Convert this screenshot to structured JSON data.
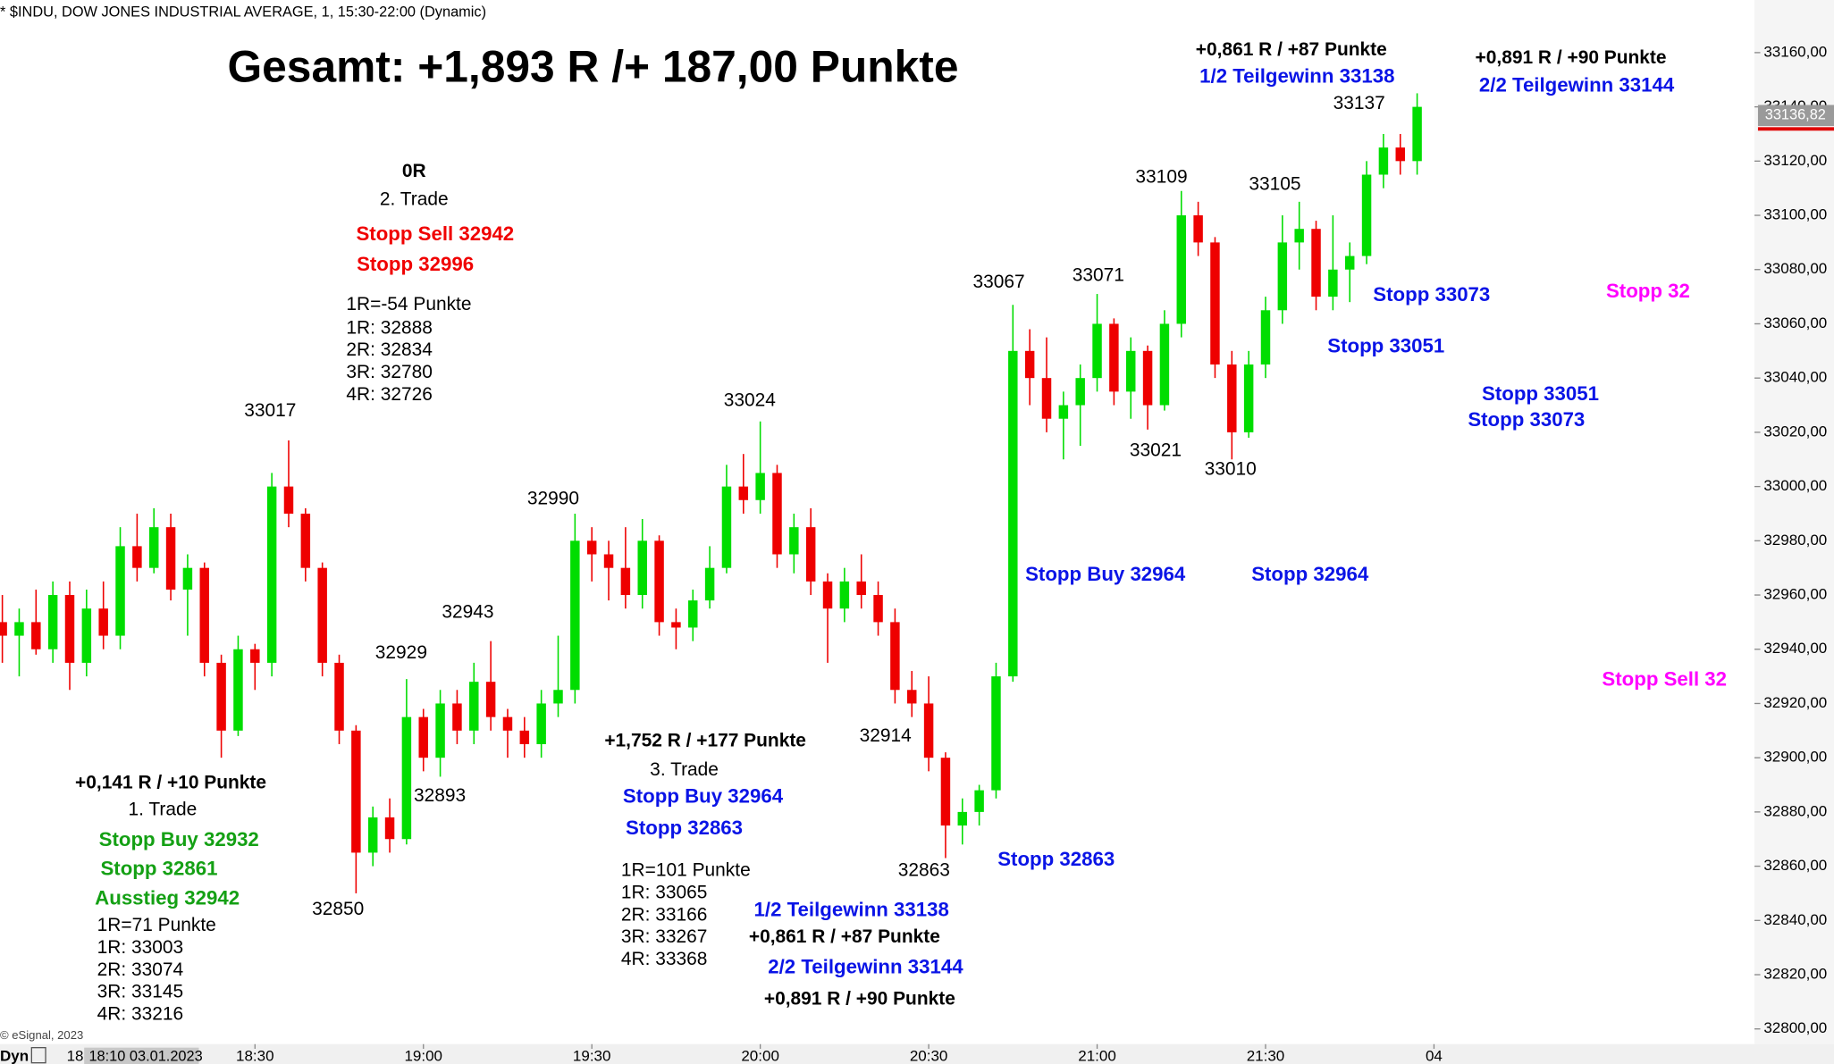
{
  "chart_data": {
    "type": "candlestick",
    "header": "* $INDU, DOW JONES INDUSTRIAL AVERAGE, 1, 15:30-22:00 (Dynamic)",
    "title": "Gesamt: +1,893 R /+ 187,00 Punkte",
    "x": [
      "17:45",
      "17:48",
      "17:51",
      "17:54",
      "17:57",
      "18:00",
      "18:03",
      "18:06",
      "18:09",
      "18:12",
      "18:15",
      "18:18",
      "18:21",
      "18:24",
      "18:27",
      "18:30",
      "18:33",
      "18:36",
      "18:39",
      "18:42",
      "18:45",
      "18:48",
      "18:51",
      "18:54",
      "18:57",
      "19:00",
      "19:03",
      "19:06",
      "19:09",
      "19:12",
      "19:15",
      "19:18",
      "19:21",
      "19:24",
      "19:27",
      "19:30",
      "19:33",
      "19:36",
      "19:39",
      "19:42",
      "19:45",
      "19:48",
      "19:51",
      "19:54",
      "19:57",
      "20:00",
      "20:03",
      "20:06",
      "20:09",
      "20:12",
      "20:15",
      "20:18",
      "20:21",
      "20:24",
      "20:27",
      "20:30",
      "20:33",
      "20:36",
      "20:39",
      "20:42",
      "20:45",
      "20:48",
      "20:51",
      "20:54",
      "20:57",
      "21:00",
      "21:03",
      "21:06",
      "21:09",
      "21:12",
      "21:15",
      "21:18",
      "21:21",
      "21:24",
      "21:27",
      "21:30",
      "21:33",
      "21:36",
      "21:39",
      "21:42",
      "21:45",
      "21:48",
      "21:51",
      "21:54",
      "21:57"
    ],
    "open": [
      32950,
      32945,
      32950,
      32940,
      32960,
      32935,
      32955,
      32945,
      32978,
      32970,
      32985,
      32962,
      32970,
      32935,
      32910,
      32940,
      32935,
      33000,
      32990,
      32970,
      32935,
      32910,
      32865,
      32878,
      32870,
      32915,
      32900,
      32920,
      32910,
      32928,
      32915,
      32910,
      32905,
      32920,
      32925,
      32980,
      32975,
      32970,
      32960,
      32980,
      32950,
      32948,
      32958,
      32970,
      33000,
      32995,
      33005,
      32975,
      32985,
      32965,
      32955,
      32965,
      32960,
      32950,
      32925,
      32920,
      32900,
      32875,
      32880,
      32888,
      32930,
      33050,
      33040,
      33025,
      33030,
      33040,
      33060,
      33035,
      33050,
      33030,
      33060,
      33100,
      33090,
      33045,
      33020,
      33045,
      33065,
      33090,
      33095,
      33070,
      33080,
      33085,
      33115,
      33125,
      33120
    ],
    "high": [
      32960,
      32955,
      32962,
      32965,
      32965,
      32962,
      32965,
      32985,
      32990,
      32992,
      32990,
      32975,
      32972,
      32938,
      32945,
      32942,
      33005,
      33017,
      32992,
      32972,
      32938,
      32912,
      32882,
      32885,
      32929,
      32918,
      32925,
      32925,
      32935,
      32943,
      32918,
      32915,
      32925,
      32945,
      32990,
      32985,
      32980,
      32985,
      32988,
      32982,
      32955,
      32962,
      32978,
      33008,
      33012,
      33024,
      33008,
      32990,
      32992,
      32968,
      32970,
      32975,
      32965,
      32955,
      32932,
      32930,
      32902,
      32885,
      32890,
      32935,
      33067,
      33058,
      33055,
      33035,
      33045,
      33071,
      33062,
      33055,
      33052,
      33065,
      33109,
      33105,
      33092,
      33050,
      33050,
      33070,
      33100,
      33105,
      33098,
      33100,
      33090,
      33120,
      33130,
      33130,
      33145
    ],
    "low": [
      32935,
      32930,
      32938,
      32935,
      32925,
      32930,
      32940,
      32940,
      32965,
      32968,
      32958,
      32945,
      32930,
      32900,
      32908,
      32925,
      32930,
      32985,
      32965,
      32930,
      32905,
      32850,
      32860,
      32865,
      32868,
      32895,
      32893,
      32905,
      32905,
      32910,
      32900,
      32900,
      32900,
      32915,
      32920,
      32965,
      32958,
      32955,
      32955,
      32945,
      32940,
      32943,
      32955,
      32968,
      32990,
      32990,
      32970,
      32968,
      32960,
      32935,
      32950,
      32955,
      32945,
      32920,
      32915,
      32895,
      32863,
      32868,
      32875,
      32885,
      32928,
      33030,
      33020,
      33010,
      33015,
      33035,
      33030,
      33025,
      33021,
      33028,
      33055,
      33085,
      33040,
      33010,
      33018,
      33040,
      33060,
      33080,
      33065,
      33065,
      33068,
      33082,
      33110,
      33115,
      33115
    ],
    "close": [
      32945,
      32950,
      32940,
      32960,
      32935,
      32955,
      32945,
      32978,
      32970,
      32985,
      32962,
      32970,
      32935,
      32910,
      32940,
      32935,
      33000,
      32990,
      32970,
      32935,
      32910,
      32865,
      32878,
      32870,
      32915,
      32900,
      32920,
      32910,
      32928,
      32915,
      32910,
      32905,
      32920,
      32925,
      32980,
      32975,
      32970,
      32960,
      32980,
      32950,
      32948,
      32958,
      32970,
      33000,
      32995,
      33005,
      32975,
      32985,
      32965,
      32955,
      32965,
      32960,
      32950,
      32925,
      32920,
      32900,
      32875,
      32880,
      32888,
      32930,
      33050,
      33040,
      33025,
      33030,
      33040,
      33060,
      33035,
      33050,
      33030,
      33060,
      33100,
      33090,
      33045,
      33020,
      33045,
      33065,
      33090,
      33095,
      33070,
      33080,
      33085,
      33115,
      33125,
      33120,
      33140
    ],
    "up_color": "#00dd00",
    "down_color": "#ee0000",
    "ylim": [
      32800,
      33160
    ],
    "yticks": [
      {
        "value": 32800,
        "label": "32800,00"
      },
      {
        "value": 32820,
        "label": "32820,00"
      },
      {
        "value": 32840,
        "label": "32840,00"
      },
      {
        "value": 32860,
        "label": "32860,00"
      },
      {
        "value": 32880,
        "label": "32880,00"
      },
      {
        "value": 32900,
        "label": "32900,00"
      },
      {
        "value": 32920,
        "label": "32920,00"
      },
      {
        "value": 32940,
        "label": "32940,00"
      },
      {
        "value": 32960,
        "label": "32960,00"
      },
      {
        "value": 32980,
        "label": "32980,00"
      },
      {
        "value": 33000,
        "label": "33000,00"
      },
      {
        "value": 33020,
        "label": "33020,00"
      },
      {
        "value": 33040,
        "label": "33040,00"
      },
      {
        "value": 33060,
        "label": "33060,00"
      },
      {
        "value": 33080,
        "label": "33080,00"
      },
      {
        "value": 33100,
        "label": "33100,00"
      },
      {
        "value": 33120,
        "label": "33120,00"
      },
      {
        "value": 33140,
        "label": "33140,00"
      },
      {
        "value": 33160,
        "label": "33160,00"
      }
    ],
    "last_price": {
      "value": 33136.82,
      "label": "33136,82"
    },
    "xticks": [
      "18:30",
      "19:00",
      "19:30",
      "20:00",
      "20:30",
      "21:00",
      "21:30",
      {
        "value": "22:00",
        "label": "04"
      }
    ],
    "annotations": [
      {
        "text": "+0,861 R / +87 Punkte",
        "color": "#000000",
        "bold": true
      },
      {
        "text": "1/2 Teilgewinn 33138",
        "color": "#0a14e6",
        "bold": true
      },
      {
        "text": "+0,891 R / +90 Punkte",
        "color": "#000000",
        "bold": true
      },
      {
        "text": "2/2 Teilgewinn 33144",
        "color": "#0a14e6",
        "bold": true
      },
      {
        "text": "33137",
        "color": "#000000",
        "bold": false
      },
      {
        "text": "0R",
        "color": "#000000",
        "bold": true
      },
      {
        "text": "2. Trade",
        "color": "#000000",
        "bold": false
      },
      {
        "text": "Stopp Sell 32942",
        "color": "#f00000",
        "bold": true
      },
      {
        "text": "Stopp 32996",
        "color": "#f00000",
        "bold": true
      },
      {
        "text": "1R=-54 Punkte",
        "color": "#000000",
        "bold": false
      },
      {
        "text": "1R: 32888",
        "color": "#000000",
        "bold": false
      },
      {
        "text": "2R: 32834",
        "color": "#000000",
        "bold": false
      },
      {
        "text": "3R: 32780",
        "color": "#000000",
        "bold": false
      },
      {
        "text": "4R: 32726",
        "color": "#000000",
        "bold": false
      },
      {
        "text": "33017",
        "color": "#000000",
        "bold": false
      },
      {
        "text": "33024",
        "color": "#000000",
        "bold": false
      },
      {
        "text": "32990",
        "color": "#000000",
        "bold": false
      },
      {
        "text": "32943",
        "color": "#000000",
        "bold": false
      },
      {
        "text": "32929",
        "color": "#000000",
        "bold": false
      },
      {
        "text": "32893",
        "color": "#000000",
        "bold": false
      },
      {
        "text": "32850",
        "color": "#000000",
        "bold": false
      },
      {
        "text": "33109",
        "color": "#000000",
        "bold": false
      },
      {
        "text": "33105",
        "color": "#000000",
        "bold": false
      },
      {
        "text": "33067",
        "color": "#000000",
        "bold": false
      },
      {
        "text": "33071",
        "color": "#000000",
        "bold": false
      },
      {
        "text": "33021",
        "color": "#000000",
        "bold": false
      },
      {
        "text": "33010",
        "color": "#000000",
        "bold": false
      },
      {
        "text": "Stopp 33073",
        "color": "#0a14e6",
        "bold": true
      },
      {
        "text": "Stopp  32",
        "color": "#ff00ff",
        "bold": true
      },
      {
        "text": "Stopp 33051",
        "color": "#0a14e6",
        "bold": true
      },
      {
        "text": "Stopp 33051",
        "color": "#0a14e6",
        "bold": true
      },
      {
        "text": "Stopp 33073",
        "color": "#0a14e6",
        "bold": true
      },
      {
        "text": "Stopp Buy 32964",
        "color": "#0a14e6",
        "bold": true
      },
      {
        "text": "Stopp 32964",
        "color": "#0a14e6",
        "bold": true
      },
      {
        "text": "Stopp Sell 32",
        "color": "#ff00ff",
        "bold": true
      },
      {
        "text": "+1,752 R / +177 Punkte",
        "color": "#000000",
        "bold": true
      },
      {
        "text": "3. Trade",
        "color": "#000000",
        "bold": false
      },
      {
        "text": "Stopp Buy 32964",
        "color": "#0a14e6",
        "bold": true
      },
      {
        "text": "Stopp 32863",
        "color": "#0a14e6",
        "bold": true
      },
      {
        "text": "32914",
        "color": "#000000",
        "bold": false
      },
      {
        "text": "32863",
        "color": "#000000",
        "bold": false
      },
      {
        "text": "Stopp 32863",
        "color": "#0a14e6",
        "bold": true
      },
      {
        "text": "1R=101 Punkte",
        "color": "#000000",
        "bold": false
      },
      {
        "text": "1R: 33065",
        "color": "#000000",
        "bold": false
      },
      {
        "text": "2R: 33166",
        "color": "#000000",
        "bold": false
      },
      {
        "text": "3R: 33267",
        "color": "#000000",
        "bold": false
      },
      {
        "text": "4R: 33368",
        "color": "#000000",
        "bold": false
      },
      {
        "text": "1/2 Teilgewinn 33138",
        "color": "#0a14e6",
        "bold": true
      },
      {
        "text": "+0,861 R / +87 Punkte",
        "color": "#000000",
        "bold": true
      },
      {
        "text": "2/2 Teilgewinn 33144",
        "color": "#0a14e6",
        "bold": true
      },
      {
        "text": "+0,891 R / +90 Punkte",
        "color": "#000000",
        "bold": true
      },
      {
        "text": "+0,141 R / +10 Punkte",
        "color": "#000000",
        "bold": true
      },
      {
        "text": "1. Trade",
        "color": "#000000",
        "bold": false
      },
      {
        "text": "Stopp Buy 32932",
        "color": "#14a014",
        "bold": true
      },
      {
        "text": "Stopp 32861",
        "color": "#14a014",
        "bold": true
      },
      {
        "text": "Ausstieg 32942",
        "color": "#14a014",
        "bold": true
      },
      {
        "text": "1R=71 Punkte",
        "color": "#000000",
        "bold": false
      },
      {
        "text": "1R: 33003",
        "color": "#000000",
        "bold": false
      },
      {
        "text": "2R: 33074",
        "color": "#000000",
        "bold": false
      },
      {
        "text": "3R: 33145",
        "color": "#000000",
        "bold": false
      },
      {
        "text": "4R: 33216",
        "color": "#000000",
        "bold": false
      }
    ],
    "ui": {
      "copyright": "© eSignal, 2023",
      "dyn": "Dyn",
      "partial_tick": "18",
      "cursor_label": "18:10 03.01.2023"
    }
  }
}
